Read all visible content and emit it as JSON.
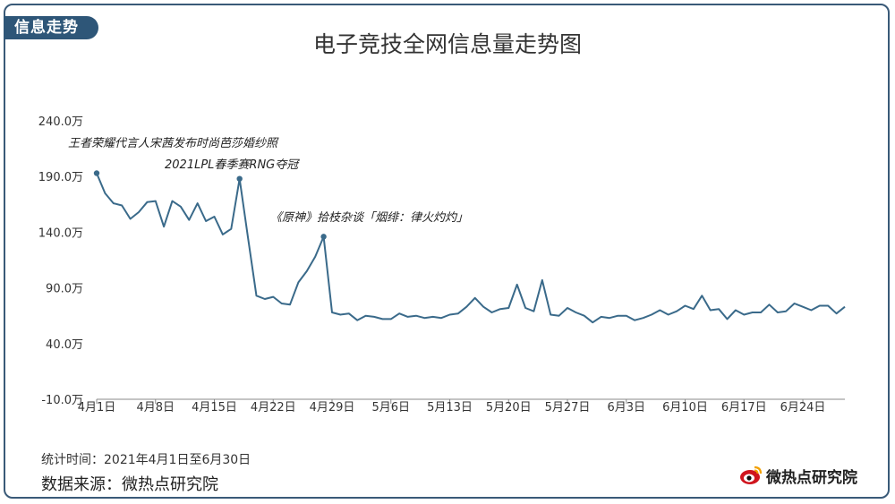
{
  "tag_label": "信息走势",
  "footer": {
    "stat_time": "统计时间：2021年4月1日至6月30日",
    "source": "数据来源：微热点研究院"
  },
  "brand": {
    "name": "微热点研究院",
    "icon": "weibo-eye-icon"
  },
  "colors": {
    "line": "#3a6a8a",
    "frame": "#3a5a78",
    "tag_bg": "#2e5678",
    "axis": "#888888"
  },
  "chart_data": {
    "type": "line",
    "title": "电子竞技全网信息量走势图",
    "xlabel": "",
    "ylabel": "",
    "y_ticks": [
      -10,
      40,
      90,
      140,
      190,
      240
    ],
    "y_tick_labels": [
      "-10.0万",
      "40.0万",
      "90.0万",
      "140.0万",
      "190.0万",
      "240.0万"
    ],
    "ylim": [
      -10,
      240
    ],
    "x_tick_labels": [
      "4月1日",
      "4月8日",
      "4月15日",
      "4月22日",
      "4月29日",
      "5月6日",
      "5月13日",
      "5月20日",
      "5月27日",
      "6月3日",
      "6月10日",
      "6月17日",
      "6月24日"
    ],
    "x_tick_index": [
      0,
      7,
      14,
      21,
      28,
      35,
      42,
      49,
      56,
      63,
      70,
      77,
      84
    ],
    "grid": false,
    "series": [
      {
        "values": [
          193,
          175,
          166,
          164,
          152,
          158,
          167,
          168,
          145,
          168,
          163,
          151,
          166,
          150,
          154,
          138,
          143,
          188,
          135,
          83,
          80,
          82,
          76,
          75,
          95,
          105,
          118,
          136,
          68,
          66,
          67,
          61,
          65,
          64,
          62,
          62,
          67,
          64,
          65,
          63,
          64,
          63,
          66,
          67,
          73,
          81,
          73,
          68,
          71,
          72,
          93,
          72,
          69,
          97,
          66,
          65,
          72,
          68,
          65,
          59,
          64,
          63,
          65,
          65,
          61,
          63,
          66,
          70,
          66,
          69,
          74,
          71,
          83,
          70,
          71,
          62,
          70,
          66,
          68,
          68,
          75,
          68,
          69,
          76,
          73,
          70,
          74,
          74,
          67,
          73
        ]
      }
    ],
    "annotations": [
      {
        "index": 0,
        "text": "王者荣耀代言人宋茜发布时尚芭莎婚纱照"
      },
      {
        "index": 17,
        "text": "2021LPL春季赛RNG夺冠"
      },
      {
        "index": 27,
        "text": "《原神》拾枝杂谈「烟绯：律火灼灼」"
      }
    ]
  }
}
